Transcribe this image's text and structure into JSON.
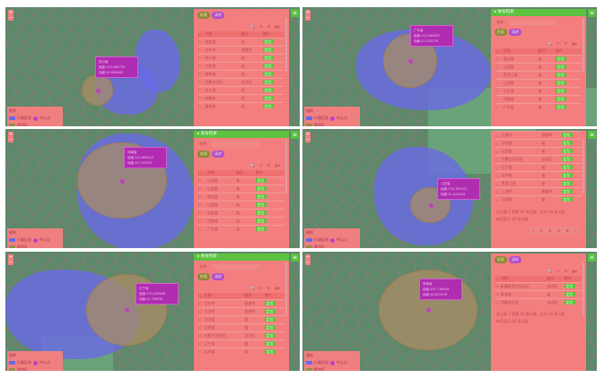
{
  "colors": {
    "panel": "#f47e7e",
    "header": "#5cc23f",
    "region": "#6969e6",
    "buffer": "#aa8c64",
    "center": "#c040c0",
    "popup": "#b02cb0"
  },
  "common": {
    "panel_title": "省份检索",
    "search_label": "名称：",
    "btn_search": "检索",
    "btn_clear": "清除",
    "col_name": "名称",
    "col_level": "级别",
    "col_op": "操作",
    "locate": "定位",
    "legend_title": "图例",
    "legend_region": "行政区划",
    "legend_buffer": "缓冲区",
    "legend_center": "中心点",
    "zoom_in": "+",
    "zoom_out": "−",
    "toggle": "≡",
    "tools": [
      "🔍",
      "⟳",
      "☰",
      "▦▾"
    ],
    "footer_info": "显示第 1 到第 10 条记录，总共 34 条记录",
    "footer_size": "每页显示 10 条记录",
    "pages": [
      "‹",
      "1",
      "2",
      "3",
      "4",
      "›"
    ]
  },
  "panels": [
    {
      "header": false,
      "search": false,
      "popup": [
        "四川省",
        "经度:104.065735",
        "纬度:30.659462"
      ],
      "rows": [
        [
          "湖北省",
          "省"
        ],
        [
          "北京市",
          "直辖市"
        ],
        [
          "四川省",
          "省"
        ],
        [
          "江西省",
          "省"
        ],
        [
          "湖南省",
          "省"
        ],
        [
          "西藏自治区",
          "自治区"
        ],
        [
          "浙江省",
          "省"
        ],
        [
          "安徽省",
          "省"
        ],
        [
          "福建省",
          "省"
        ]
      ]
    },
    {
      "header": true,
      "search": true,
      "popup": [
        "广东省",
        "经度:113.280637",
        "纬度:23.125178"
      ],
      "rows": [
        [
          "浙江省",
          "省"
        ],
        [
          "山西省",
          "省"
        ],
        [
          "黑龙江省",
          "省"
        ],
        [
          "江西省",
          "省"
        ],
        [
          "山东省",
          "省"
        ],
        [
          "河南省",
          "省"
        ],
        [
          "广东省",
          "省"
        ]
      ]
    },
    {
      "header": true,
      "search": true,
      "popup": [
        "河南省",
        "经度:113.665412",
        "纬度:34.757975"
      ],
      "rows": [
        [
          "江苏省",
          "省"
        ],
        [
          "山西省",
          "省"
        ],
        [
          "湖北省",
          "省"
        ],
        [
          "江西省",
          "省"
        ],
        [
          "山东省",
          "省"
        ],
        [
          "河南省",
          "省"
        ],
        [
          "广东省",
          "省"
        ]
      ]
    },
    {
      "header": false,
      "search": false,
      "footer": true,
      "popup": [
        "江苏省",
        "经度:118.767413",
        "纬度:32.041544"
      ],
      "rows": [
        [
          "天津市",
          "直辖市"
        ],
        [
          "河北省",
          "省"
        ],
        [
          "山西省",
          "省"
        ],
        [
          "内蒙古自治区",
          "自治区"
        ],
        [
          "辽宁省",
          "省"
        ],
        [
          "吉林省",
          "省"
        ],
        [
          "黑龙江省",
          "省"
        ],
        [
          "上海市",
          "直辖市"
        ],
        [
          "江苏省",
          "省"
        ]
      ]
    },
    {
      "header": true,
      "search": true,
      "popup": [
        "辽宁省",
        "经度:123.429096",
        "纬度:41.796767"
      ],
      "rows": [
        [
          "北京市",
          "直辖市"
        ],
        [
          "天津市",
          "直辖市"
        ],
        [
          "河北省",
          "省"
        ],
        [
          "山西省",
          "省"
        ],
        [
          "内蒙古自治区",
          "自治区"
        ],
        [
          "辽宁省",
          "省"
        ],
        [
          "吉林省",
          "省"
        ]
      ]
    },
    {
      "header": false,
      "search": false,
      "footer": true,
      "short": true,
      "popup": [
        "青海省",
        "经度:101.778916",
        "纬度:36.623178"
      ],
      "rows": [
        [
          "新疆维吾尔自治区",
          "自治区"
        ],
        [
          "青海省",
          "省"
        ],
        [
          "西藏自治区",
          "自治区"
        ]
      ]
    }
  ]
}
